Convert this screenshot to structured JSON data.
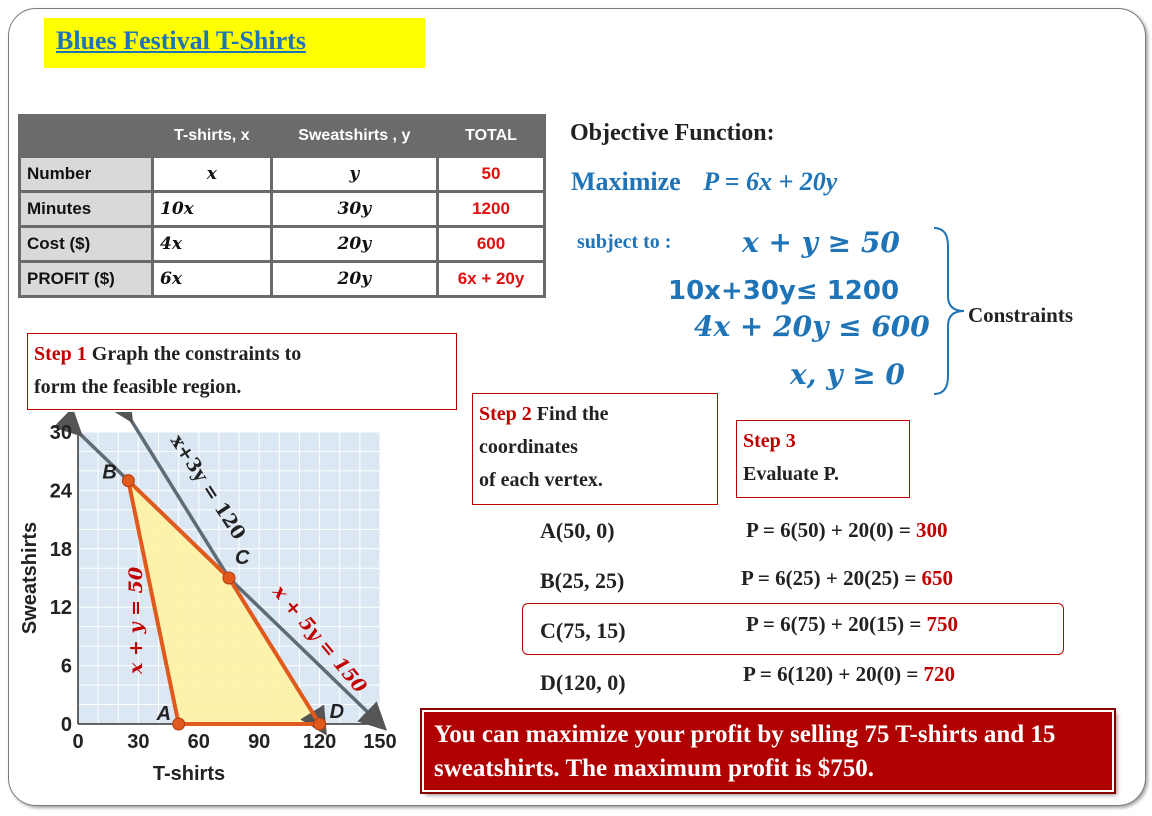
{
  "title": "Blues Festival T-Shirts",
  "table": {
    "headers": [
      "",
      "T-shirts, x",
      "Sweatshirts , y",
      "TOTAL"
    ],
    "rows": [
      {
        "label": "Number",
        "a": "x",
        "b": "y",
        "total": "50"
      },
      {
        "label": "Minutes",
        "a": "10x",
        "b": "30y",
        "total": "1200"
      },
      {
        "label": "Cost ($)",
        "a": "4x",
        "b": "20y",
        "total": "600"
      },
      {
        "label": "PROFIT ($)",
        "a": "6x",
        "b": "20y",
        "total": "6x + 20y"
      }
    ]
  },
  "objective": {
    "heading": "Objective Function:",
    "maximize": "Maximize",
    "function": "P = 6x + 20y"
  },
  "constraints": {
    "subject_to": "subject to :",
    "c1": "x + y ≥ 50",
    "c2": "10x+30y≤ 1200",
    "c3": "4x + 20y ≤ 600",
    "c4": "x, y ≥ 0",
    "label": "Constraints"
  },
  "steps": {
    "step1_label": "Step 1",
    "step1_text": " Graph the  constraints to",
    "step1_text2": "form the feasible region.",
    "step2_label": "Step 2",
    "step2_text": " Find the",
    "step2_text2": "coordinates",
    "step2_text3": "of each vertex.",
    "step3_label": "Step 3",
    "step3_text": "Evaluate P."
  },
  "vertices": [
    {
      "point": "A(50, 0)",
      "eval": "P = 6(50) + 20(0) = ",
      "result": "300"
    },
    {
      "point": "B(25, 25)",
      "eval": "P = 6(25) + 20(25) = ",
      "result": "650"
    },
    {
      "point": "C(75, 15)",
      "eval": "P = 6(75) + 20(15) = ",
      "result": "750"
    },
    {
      "point": "D(120, 0)",
      "eval": "P = 6(120) + 20(0) = ",
      "result": "720"
    }
  ],
  "conclusion": "You can maximize your profit by selling 75 T-shirts and 15 sweatshirts. The maximum profit is $750.",
  "chart_data": {
    "type": "line",
    "xlabel": "T-shirts",
    "ylabel": "Sweatshirts",
    "xlim": [
      0,
      150
    ],
    "ylim": [
      0,
      30
    ],
    "x_ticks": [
      "0",
      "30",
      "60",
      "90",
      "120",
      "150"
    ],
    "y_ticks": [
      "0",
      "6",
      "12",
      "18",
      "24",
      "30"
    ],
    "lines": [
      {
        "name": "x+3y = 120",
        "points": [
          [
            0,
            40
          ],
          [
            150,
            -10
          ]
        ]
      },
      {
        "name": "x + 5y = 150",
        "points": [
          [
            0,
            30
          ],
          [
            150,
            0
          ]
        ]
      },
      {
        "name": "x + y = 50",
        "points": [
          [
            25,
            25
          ],
          [
            50,
            0
          ]
        ]
      }
    ],
    "vertices": [
      {
        "label": "A",
        "x": 50,
        "y": 0
      },
      {
        "label": "B",
        "x": 25,
        "y": 25
      },
      {
        "label": "C",
        "x": 75,
        "y": 15
      },
      {
        "label": "D",
        "x": 120,
        "y": 0
      }
    ],
    "grid": true
  }
}
